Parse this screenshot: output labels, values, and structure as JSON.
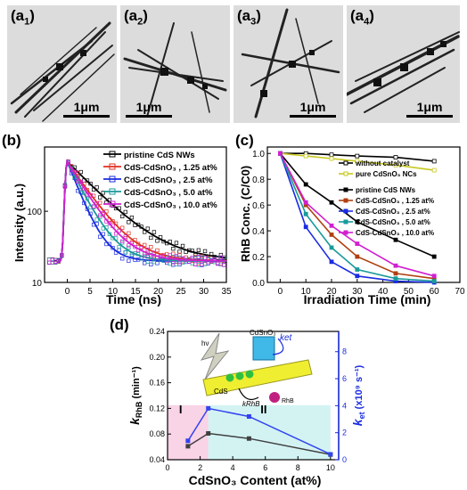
{
  "tem_panels": [
    {
      "label": "(a",
      "sub": "1",
      "close": ")",
      "scale": "1μm"
    },
    {
      "label": "(a",
      "sub": "2",
      "close": ")",
      "scale": "1μm"
    },
    {
      "label": "(a",
      "sub": "3",
      "close": ")",
      "scale": "1μm"
    },
    {
      "label": "(a",
      "sub": "4",
      "close": ")",
      "scale": "1μm"
    }
  ],
  "chart_data": [
    {
      "panel": "(b)",
      "type": "scatter",
      "xlabel": "Time (ns)",
      "ylabel": "Intensity (a.u.)",
      "xlim": [
        -5,
        35
      ],
      "ylim_log": [
        10,
        800
      ],
      "xticks": [
        "0",
        "5",
        "10",
        "15",
        "20",
        "25",
        "30",
        "35"
      ],
      "yticks": [
        "10",
        "100"
      ],
      "legend": [
        "pristine CdS NWs",
        "CdS-CdSnO₃ , 1.25 at%",
        "CdS-CdSnO₃ , 2.5 at%",
        "CdS-CdSnO₃ , 5.0 at%",
        "CdS-CdSnO₃ , 10.0 at%"
      ],
      "colors": [
        "#000000",
        "#e03020",
        "#1a2ce0",
        "#1a9a9a",
        "#d020d0"
      ],
      "decay_tau": [
        6.5,
        4.5,
        2.6,
        3.3,
        4.0
      ],
      "baseline": 20,
      "peak": 500
    },
    {
      "panel": "(c)",
      "type": "line",
      "xlabel": "Irradiation Time (min)",
      "ylabel": "RhB Conc. (C/C0)",
      "xlim": [
        -5,
        70
      ],
      "ylim": [
        0,
        1.05
      ],
      "xticks": [
        "0",
        "10",
        "20",
        "30",
        "40",
        "50",
        "60",
        "70"
      ],
      "yticks": [
        "0.0",
        "0.2",
        "0.4",
        "0.6",
        "0.8",
        "1.0"
      ],
      "x": [
        0,
        10,
        20,
        30,
        45,
        60
      ],
      "series": [
        {
          "name": "without catalyst",
          "color": "#000000",
          "values": [
            1.0,
            1.0,
            0.99,
            0.98,
            0.97,
            0.94
          ]
        },
        {
          "name": "pure CdSnO₃ NCs",
          "color": "#c8c820",
          "values": [
            1.0,
            0.98,
            0.96,
            0.94,
            0.91,
            0.87
          ]
        },
        {
          "name": "pristine CdS NWs",
          "color": "#000000",
          "values": [
            1.0,
            0.76,
            0.62,
            0.47,
            0.33,
            0.2
          ]
        },
        {
          "name": "CdS-CdSnO₃ , 1.25 at%",
          "color": "#b04010",
          "values": [
            1.0,
            0.6,
            0.37,
            0.2,
            0.07,
            0.03
          ]
        },
        {
          "name": "CdS-CdSnO₃ , 2.5 at%",
          "color": "#1a2ce0",
          "values": [
            1.0,
            0.43,
            0.16,
            0.05,
            0.01,
            0.0
          ]
        },
        {
          "name": "CdS-CdSnO₃ , 5.0 at%",
          "color": "#1a9a9a",
          "values": [
            1.0,
            0.53,
            0.27,
            0.1,
            0.03,
            0.01
          ]
        },
        {
          "name": "CdS-CdSnO₃ , 10.0 at%",
          "color": "#d020d0",
          "values": [
            1.0,
            0.62,
            0.44,
            0.3,
            0.13,
            0.05
          ]
        }
      ]
    },
    {
      "panel": "(d)",
      "type": "line",
      "xlabel": "CdSnO₃ Content (at%)",
      "ylabel_left": "k",
      "ylabel_left_sub": "RhB",
      "ylabel_left_unit": "(min⁻¹)",
      "ylabel_right": "k",
      "ylabel_right_sub": "et",
      "ylabel_right_unit": "(x10⁹ s⁻¹)",
      "xlim": [
        0,
        10.5
      ],
      "ylim_left": [
        0.04,
        0.24
      ],
      "ylim_right": [
        0,
        9.5
      ],
      "xticks": [
        "0",
        "2",
        "4",
        "6",
        "8",
        "10"
      ],
      "yticks_left": [
        "0.04",
        "0.08",
        "0.12",
        "0.16",
        "0.20",
        "0.24"
      ],
      "yticks_right": [
        "0",
        "2",
        "4",
        "6",
        "8"
      ],
      "regions": [
        {
          "label": "I",
          "x0": 0,
          "x1": 2.5,
          "color": "#f8c8e0"
        },
        {
          "label": "II",
          "x0": 2.5,
          "x1": 10,
          "color": "#c8f0f0"
        }
      ],
      "series": [
        {
          "name": "kRhB",
          "axis": "left",
          "color": "#404040",
          "x": [
            1.25,
            2.5,
            5.0,
            10.0
          ],
          "values": [
            0.061,
            0.081,
            0.073,
            0.048
          ]
        },
        {
          "name": "ket",
          "axis": "right",
          "color": "#3344ee",
          "x": [
            1.25,
            2.5,
            5.0,
            10.0
          ],
          "values": [
            1.4,
            3.8,
            3.2,
            0.4
          ]
        }
      ],
      "schematic": {
        "hv": "hν",
        "cdsno3": "CdSnO₃",
        "cds": "CdS",
        "ket": "k",
        "ket_sub": "et",
        "krhb": "k",
        "krhb_sub": "RhB",
        "rhb": "RhB"
      }
    }
  ]
}
